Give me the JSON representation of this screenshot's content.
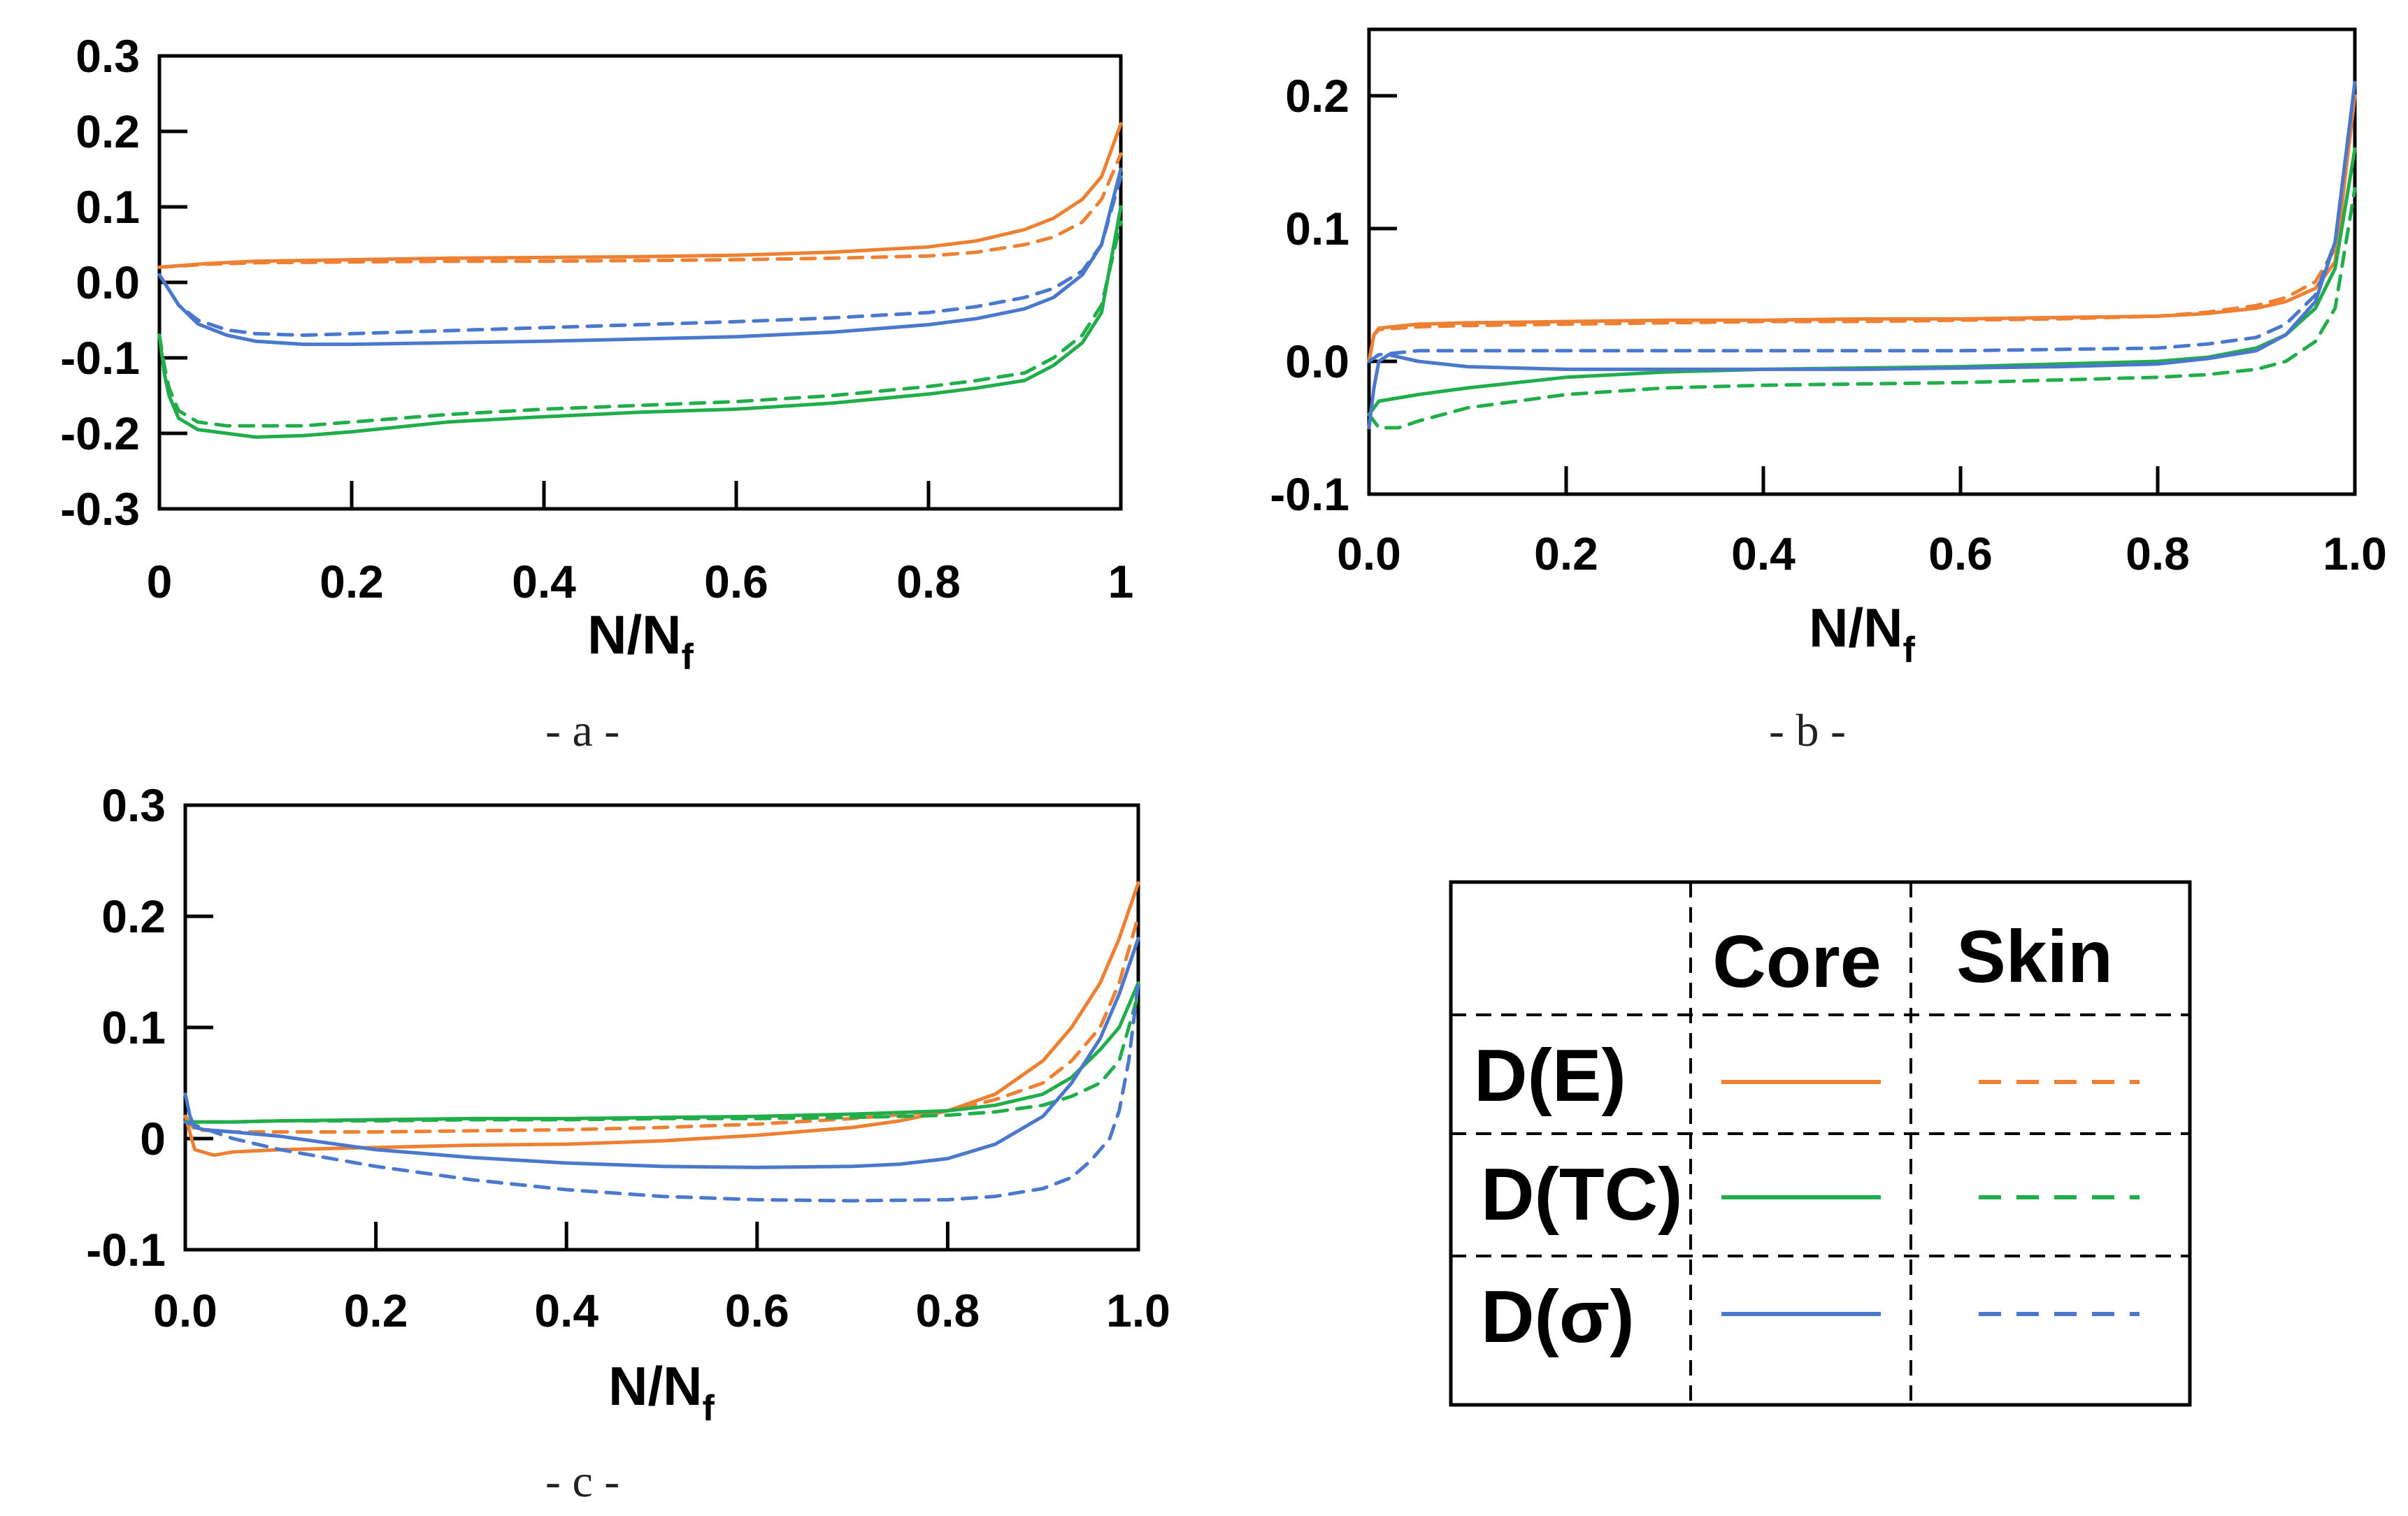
{
  "captions": [
    "- a -",
    "- b -",
    "- c -"
  ],
  "colors": {
    "orange": "#ee8033",
    "green": "#22ad4b",
    "blue": "#4a78cc"
  },
  "legend": {
    "col_headers": [
      "Core",
      "Skin"
    ],
    "rows": [
      {
        "label": "D(E)",
        "color": "#ee8033"
      },
      {
        "label": "D(TC)",
        "color": "#22ad4b"
      },
      {
        "label": "D(σ)",
        "color": "#4a78cc"
      }
    ]
  },
  "chart_data": [
    {
      "type": "line",
      "panel": "a",
      "xlabel": "N/N",
      "xlabel_sub": "f",
      "xlim": [
        0,
        1
      ],
      "ylim": [
        -0.3,
        0.3
      ],
      "xticks": [
        0,
        0.2,
        0.4,
        0.6,
        0.8,
        1
      ],
      "xtick_labels": [
        "0",
        "0.2",
        "0.4",
        "0.6",
        "0.8",
        "1"
      ],
      "yticks": [
        -0.3,
        -0.2,
        -0.1,
        0.0,
        0.1,
        0.2,
        0.3
      ],
      "ytick_labels": [
        "-0.3",
        "-0.2",
        "-0.1",
        "0.0",
        "0.1",
        "0.2",
        "0.3"
      ],
      "series": [
        {
          "name": "D(E) Core",
          "color": "#ee8033",
          "dash": false,
          "x": [
            0,
            0.05,
            0.1,
            0.2,
            0.3,
            0.4,
            0.5,
            0.6,
            0.7,
            0.8,
            0.85,
            0.9,
            0.93,
            0.96,
            0.98,
            1.0
          ],
          "y": [
            0.02,
            0.025,
            0.028,
            0.03,
            0.032,
            0.033,
            0.034,
            0.036,
            0.04,
            0.047,
            0.055,
            0.07,
            0.085,
            0.11,
            0.14,
            0.21
          ]
        },
        {
          "name": "D(E) Skin",
          "color": "#ee8033",
          "dash": true,
          "x": [
            0,
            0.05,
            0.1,
            0.2,
            0.3,
            0.4,
            0.5,
            0.6,
            0.7,
            0.8,
            0.85,
            0.9,
            0.93,
            0.96,
            0.98,
            1.0
          ],
          "y": [
            0.02,
            0.024,
            0.026,
            0.027,
            0.028,
            0.028,
            0.029,
            0.03,
            0.032,
            0.035,
            0.04,
            0.05,
            0.06,
            0.08,
            0.11,
            0.17
          ]
        },
        {
          "name": "D(TC) Core",
          "color": "#22ad4b",
          "dash": false,
          "x": [
            0,
            0.005,
            0.01,
            0.02,
            0.04,
            0.07,
            0.1,
            0.15,
            0.2,
            0.3,
            0.4,
            0.5,
            0.6,
            0.7,
            0.8,
            0.85,
            0.9,
            0.93,
            0.96,
            0.98,
            1.0
          ],
          "y": [
            -0.07,
            -0.12,
            -0.15,
            -0.18,
            -0.195,
            -0.2,
            -0.205,
            -0.203,
            -0.198,
            -0.185,
            -0.178,
            -0.172,
            -0.168,
            -0.16,
            -0.148,
            -0.14,
            -0.13,
            -0.11,
            -0.08,
            -0.04,
            0.1
          ]
        },
        {
          "name": "D(TC) Skin",
          "color": "#22ad4b",
          "dash": true,
          "x": [
            0,
            0.005,
            0.01,
            0.02,
            0.04,
            0.07,
            0.1,
            0.15,
            0.2,
            0.3,
            0.4,
            0.5,
            0.6,
            0.7,
            0.8,
            0.85,
            0.9,
            0.93,
            0.96,
            0.98,
            1.0
          ],
          "y": [
            -0.07,
            -0.11,
            -0.14,
            -0.17,
            -0.185,
            -0.19,
            -0.19,
            -0.19,
            -0.185,
            -0.175,
            -0.168,
            -0.163,
            -0.158,
            -0.15,
            -0.138,
            -0.13,
            -0.12,
            -0.1,
            -0.07,
            -0.03,
            0.08
          ]
        },
        {
          "name": "D(σ) Core",
          "color": "#4a78cc",
          "dash": false,
          "x": [
            0,
            0.02,
            0.04,
            0.07,
            0.1,
            0.15,
            0.2,
            0.3,
            0.4,
            0.5,
            0.6,
            0.7,
            0.8,
            0.85,
            0.9,
            0.93,
            0.96,
            0.98,
            1.0
          ],
          "y": [
            0.01,
            -0.03,
            -0.055,
            -0.07,
            -0.078,
            -0.082,
            -0.082,
            -0.08,
            -0.078,
            -0.075,
            -0.072,
            -0.066,
            -0.056,
            -0.048,
            -0.035,
            -0.02,
            0.01,
            0.05,
            0.15
          ]
        },
        {
          "name": "D(σ) Skin",
          "color": "#4a78cc",
          "dash": true,
          "x": [
            0,
            0.02,
            0.04,
            0.07,
            0.1,
            0.15,
            0.2,
            0.3,
            0.4,
            0.5,
            0.6,
            0.7,
            0.8,
            0.85,
            0.9,
            0.93,
            0.96,
            0.98,
            1.0
          ],
          "y": [
            0.01,
            -0.03,
            -0.05,
            -0.063,
            -0.068,
            -0.07,
            -0.068,
            -0.064,
            -0.06,
            -0.056,
            -0.052,
            -0.047,
            -0.04,
            -0.032,
            -0.02,
            -0.008,
            0.015,
            0.05,
            0.14
          ]
        }
      ]
    },
    {
      "type": "line",
      "panel": "b",
      "xlabel": "N/N",
      "xlabel_sub": "f",
      "xlim": [
        0,
        1
      ],
      "ylim": [
        -0.1,
        0.25
      ],
      "xticks": [
        0,
        0.2,
        0.4,
        0.6,
        0.8,
        1.0
      ],
      "xtick_labels": [
        "0.0",
        "0.2",
        "0.4",
        "0.6",
        "0.8",
        "1.0"
      ],
      "yticks": [
        -0.1,
        0.0,
        0.1,
        0.2
      ],
      "ytick_labels": [
        "-0.1",
        "0.0",
        "0.1",
        "0.2"
      ],
      "series": [
        {
          "name": "D(E) Core",
          "color": "#ee8033",
          "dash": false,
          "x": [
            0,
            0.005,
            0.01,
            0.05,
            0.1,
            0.2,
            0.3,
            0.4,
            0.5,
            0.6,
            0.7,
            0.8,
            0.85,
            0.9,
            0.93,
            0.96,
            0.98,
            1.0
          ],
          "y": [
            0.0,
            0.02,
            0.025,
            0.028,
            0.029,
            0.03,
            0.031,
            0.031,
            0.032,
            0.032,
            0.033,
            0.034,
            0.036,
            0.04,
            0.045,
            0.055,
            0.075,
            0.2
          ]
        },
        {
          "name": "D(E) Skin",
          "color": "#ee8033",
          "dash": true,
          "x": [
            0,
            0.005,
            0.01,
            0.05,
            0.1,
            0.2,
            0.3,
            0.4,
            0.5,
            0.6,
            0.7,
            0.8,
            0.85,
            0.9,
            0.93,
            0.96,
            0.98,
            1.0
          ],
          "y": [
            0.0,
            0.02,
            0.024,
            0.026,
            0.027,
            0.028,
            0.029,
            0.03,
            0.03,
            0.031,
            0.032,
            0.034,
            0.037,
            0.042,
            0.048,
            0.06,
            0.085,
            0.2
          ]
        },
        {
          "name": "D(TC) Core",
          "color": "#22ad4b",
          "dash": false,
          "x": [
            0,
            0.01,
            0.05,
            0.1,
            0.2,
            0.3,
            0.4,
            0.5,
            0.6,
            0.7,
            0.8,
            0.85,
            0.9,
            0.93,
            0.96,
            0.98,
            1.0
          ],
          "y": [
            -0.04,
            -0.03,
            -0.025,
            -0.02,
            -0.012,
            -0.008,
            -0.006,
            -0.005,
            -0.004,
            -0.002,
            0.0,
            0.003,
            0.01,
            0.02,
            0.04,
            0.07,
            0.16
          ]
        },
        {
          "name": "D(TC) Skin",
          "color": "#22ad4b",
          "dash": true,
          "x": [
            0,
            0.01,
            0.03,
            0.05,
            0.1,
            0.2,
            0.3,
            0.4,
            0.5,
            0.6,
            0.7,
            0.8,
            0.85,
            0.9,
            0.93,
            0.96,
            0.98,
            1.0
          ],
          "y": [
            -0.04,
            -0.05,
            -0.05,
            -0.045,
            -0.035,
            -0.025,
            -0.02,
            -0.018,
            -0.017,
            -0.016,
            -0.014,
            -0.012,
            -0.01,
            -0.006,
            0.0,
            0.015,
            0.04,
            0.13
          ]
        },
        {
          "name": "D(σ) Core",
          "color": "#4a78cc",
          "dash": false,
          "x": [
            0,
            0.005,
            0.01,
            0.02,
            0.05,
            0.1,
            0.2,
            0.3,
            0.4,
            0.5,
            0.6,
            0.7,
            0.8,
            0.85,
            0.9,
            0.93,
            0.96,
            0.98,
            1.0
          ],
          "y": [
            -0.05,
            -0.02,
            0.0,
            0.005,
            0.0,
            -0.004,
            -0.006,
            -0.006,
            -0.006,
            -0.006,
            -0.005,
            -0.004,
            -0.002,
            0.002,
            0.008,
            0.02,
            0.045,
            0.09,
            0.21
          ]
        },
        {
          "name": "D(σ) Skin",
          "color": "#4a78cc",
          "dash": true,
          "x": [
            0,
            0.01,
            0.05,
            0.1,
            0.2,
            0.3,
            0.4,
            0.5,
            0.6,
            0.7,
            0.8,
            0.85,
            0.9,
            0.93,
            0.96,
            0.98,
            1.0
          ],
          "y": [
            0.0,
            0.005,
            0.008,
            0.008,
            0.008,
            0.008,
            0.008,
            0.008,
            0.008,
            0.009,
            0.01,
            0.013,
            0.018,
            0.028,
            0.05,
            0.09,
            0.21
          ]
        }
      ]
    },
    {
      "type": "line",
      "panel": "c",
      "xlabel": "N/N",
      "xlabel_sub": "f",
      "xlim": [
        0,
        1
      ],
      "ylim": [
        -0.1,
        0.3
      ],
      "xticks": [
        0,
        0.2,
        0.4,
        0.6,
        0.8,
        1.0
      ],
      "xtick_labels": [
        "0.0",
        "0.2",
        "0.4",
        "0.6",
        "0.8",
        "1.0"
      ],
      "yticks": [
        -0.1,
        0,
        0.1,
        0.2,
        0.3
      ],
      "ytick_labels": [
        "-0.1",
        "0",
        "0.1",
        "0.2",
        "0.3"
      ],
      "series": [
        {
          "name": "D(E) Core",
          "color": "#ee8033",
          "dash": false,
          "x": [
            0,
            0.01,
            0.03,
            0.05,
            0.1,
            0.2,
            0.3,
            0.4,
            0.5,
            0.6,
            0.7,
            0.75,
            0.8,
            0.85,
            0.9,
            0.93,
            0.96,
            0.98,
            1.0
          ],
          "y": [
            0.02,
            -0.01,
            -0.015,
            -0.012,
            -0.01,
            -0.008,
            -0.006,
            -0.005,
            -0.002,
            0.003,
            0.01,
            0.016,
            0.025,
            0.04,
            0.07,
            0.1,
            0.14,
            0.18,
            0.23
          ]
        },
        {
          "name": "D(E) Skin",
          "color": "#ee8033",
          "dash": true,
          "x": [
            0,
            0.01,
            0.05,
            0.1,
            0.2,
            0.3,
            0.4,
            0.5,
            0.6,
            0.7,
            0.8,
            0.85,
            0.9,
            0.93,
            0.96,
            0.98,
            1.0
          ],
          "y": [
            0.02,
            0.008,
            0.006,
            0.006,
            0.006,
            0.007,
            0.008,
            0.01,
            0.013,
            0.018,
            0.025,
            0.035,
            0.05,
            0.07,
            0.1,
            0.14,
            0.2
          ]
        },
        {
          "name": "D(TC) Core",
          "color": "#22ad4b",
          "dash": false,
          "x": [
            0,
            0.01,
            0.05,
            0.1,
            0.2,
            0.3,
            0.4,
            0.5,
            0.6,
            0.7,
            0.8,
            0.85,
            0.9,
            0.93,
            0.96,
            0.98,
            1.0
          ],
          "y": [
            0.015,
            0.015,
            0.015,
            0.016,
            0.017,
            0.018,
            0.018,
            0.019,
            0.02,
            0.022,
            0.025,
            0.03,
            0.04,
            0.055,
            0.08,
            0.1,
            0.14
          ]
        },
        {
          "name": "D(TC) Skin",
          "color": "#22ad4b",
          "dash": true,
          "x": [
            0,
            0.01,
            0.05,
            0.1,
            0.2,
            0.3,
            0.4,
            0.5,
            0.6,
            0.7,
            0.8,
            0.85,
            0.9,
            0.93,
            0.96,
            0.98,
            1.0
          ],
          "y": [
            0.015,
            0.015,
            0.015,
            0.016,
            0.016,
            0.017,
            0.017,
            0.018,
            0.018,
            0.019,
            0.021,
            0.024,
            0.03,
            0.038,
            0.05,
            0.07,
            0.13
          ]
        },
        {
          "name": "D(σ) Core",
          "color": "#4a78cc",
          "dash": false,
          "x": [
            0,
            0.005,
            0.01,
            0.02,
            0.05,
            0.1,
            0.2,
            0.3,
            0.4,
            0.5,
            0.6,
            0.7,
            0.75,
            0.8,
            0.85,
            0.9,
            0.93,
            0.96,
            0.98,
            1.0
          ],
          "y": [
            0.04,
            0.02,
            0.01,
            0.008,
            0.006,
            0.002,
            -0.01,
            -0.017,
            -0.022,
            -0.025,
            -0.026,
            -0.025,
            -0.023,
            -0.018,
            -0.005,
            0.02,
            0.05,
            0.09,
            0.13,
            0.18
          ]
        },
        {
          "name": "D(σ) Skin",
          "color": "#4a78cc",
          "dash": true,
          "x": [
            0,
            0.01,
            0.05,
            0.1,
            0.2,
            0.3,
            0.4,
            0.5,
            0.6,
            0.7,
            0.8,
            0.85,
            0.9,
            0.93,
            0.95,
            0.97,
            0.98,
            0.99,
            1.0
          ],
          "y": [
            0.015,
            0.012,
            0.0,
            -0.01,
            -0.025,
            -0.037,
            -0.046,
            -0.052,
            -0.055,
            -0.056,
            -0.055,
            -0.052,
            -0.045,
            -0.035,
            -0.02,
            0.0,
            0.025,
            0.07,
            0.14
          ]
        }
      ]
    }
  ]
}
